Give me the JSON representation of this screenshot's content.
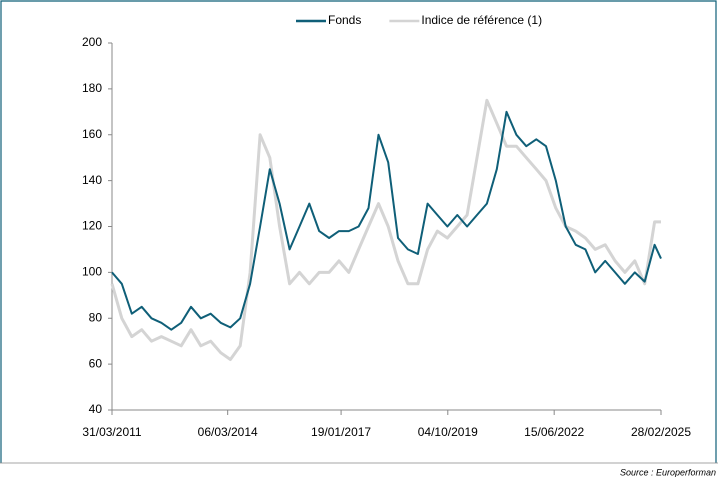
{
  "chart_data": {
    "type": "line",
    "x": [
      "31/03/2011",
      "30/06/2011",
      "30/09/2011",
      "31/12/2011",
      "31/03/2012",
      "30/06/2012",
      "30/09/2012",
      "31/12/2012",
      "31/03/2013",
      "30/06/2013",
      "30/09/2013",
      "31/12/2013",
      "31/03/2014",
      "30/06/2014",
      "30/09/2014",
      "31/12/2014",
      "31/03/2015",
      "30/06/2015",
      "30/09/2015",
      "31/12/2015",
      "31/03/2016",
      "30/06/2016",
      "30/09/2016",
      "31/12/2016",
      "31/03/2017",
      "30/06/2017",
      "30/09/2017",
      "31/12/2017",
      "31/03/2018",
      "30/06/2018",
      "30/09/2018",
      "31/12/2018",
      "31/03/2019",
      "30/06/2019",
      "30/09/2019",
      "31/12/2019",
      "31/03/2020",
      "30/06/2020",
      "30/09/2020",
      "31/12/2020",
      "31/03/2021",
      "30/06/2021",
      "30/09/2021",
      "31/12/2021",
      "31/03/2022",
      "30/06/2022",
      "30/09/2022",
      "31/12/2022",
      "31/03/2023",
      "30/06/2023",
      "30/09/2023",
      "31/12/2023",
      "31/03/2024",
      "30/06/2024",
      "30/09/2024",
      "31/12/2024",
      "28/02/2025"
    ],
    "series": [
      {
        "name": "Indice de référence (1)",
        "color": "#d4d4d4",
        "values": [
          95,
          80,
          72,
          75,
          70,
          72,
          70,
          68,
          75,
          68,
          70,
          65,
          62,
          68,
          100,
          160,
          150,
          120,
          95,
          100,
          95,
          100,
          100,
          105,
          100,
          110,
          120,
          130,
          120,
          105,
          95,
          95,
          110,
          118,
          115,
          120,
          125,
          150,
          175,
          165,
          155,
          155,
          150,
          145,
          140,
          128,
          120,
          118,
          115,
          110,
          112,
          105,
          100,
          105,
          95,
          122,
          122
        ]
      },
      {
        "name": "Fonds",
        "color": "#0f5f78",
        "values": [
          100,
          95,
          82,
          85,
          80,
          78,
          75,
          78,
          85,
          80,
          82,
          78,
          76,
          80,
          95,
          120,
          145,
          130,
          110,
          120,
          130,
          118,
          115,
          118,
          118,
          120,
          128,
          160,
          148,
          115,
          110,
          108,
          130,
          125,
          120,
          125,
          120,
          125,
          130,
          145,
          170,
          160,
          155,
          158,
          155,
          140,
          120,
          112,
          110,
          100,
          105,
          100,
          95,
          100,
          96,
          112,
          106
        ]
      }
    ],
    "xlim": [
      "31/03/2011",
      "28/02/2025"
    ],
    "xticks": [
      "31/03/2011",
      "06/03/2014",
      "19/01/2017",
      "04/10/2019",
      "15/06/2022",
      "28/02/2025"
    ],
    "ylim": [
      40,
      200
    ],
    "yticks": [
      40,
      60,
      80,
      100,
      120,
      140,
      160,
      180,
      200
    ],
    "legend": "top",
    "source": "Source : Europerforman"
  }
}
